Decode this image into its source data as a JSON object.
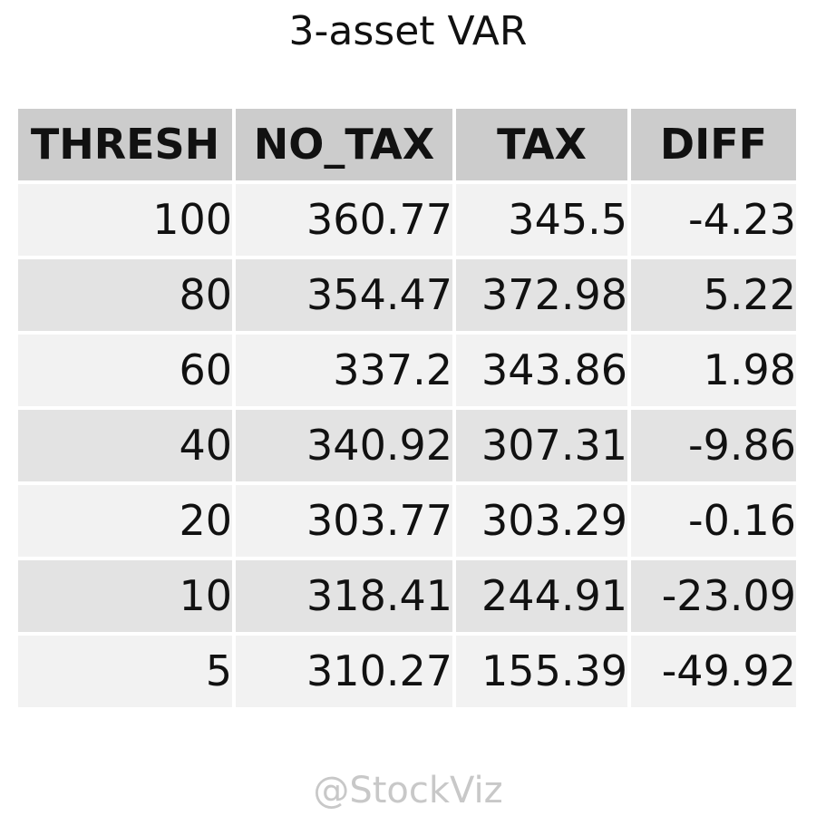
{
  "chart_data": {
    "type": "table",
    "title": "3-asset VAR",
    "columns": [
      "THRESH",
      "NO_TAX",
      "TAX",
      "DIFF"
    ],
    "rows": [
      [
        "100",
        "360.77",
        "345.5",
        "-4.23"
      ],
      [
        "80",
        "354.47",
        "372.98",
        "5.22"
      ],
      [
        "60",
        "337.2",
        "343.86",
        "1.98"
      ],
      [
        "40",
        "340.92",
        "307.31",
        "-9.86"
      ],
      [
        "20",
        "303.77",
        "303.29",
        "-0.16"
      ],
      [
        "10",
        "318.41",
        "244.91",
        "-23.09"
      ],
      [
        "5",
        "310.27",
        "155.39",
        "-49.92"
      ]
    ],
    "colors": {
      "header_bg": "#cccccc",
      "row_light": "#f2f2f2",
      "row_dark": "#e3e3e3"
    }
  },
  "watermark": "@StockViz"
}
